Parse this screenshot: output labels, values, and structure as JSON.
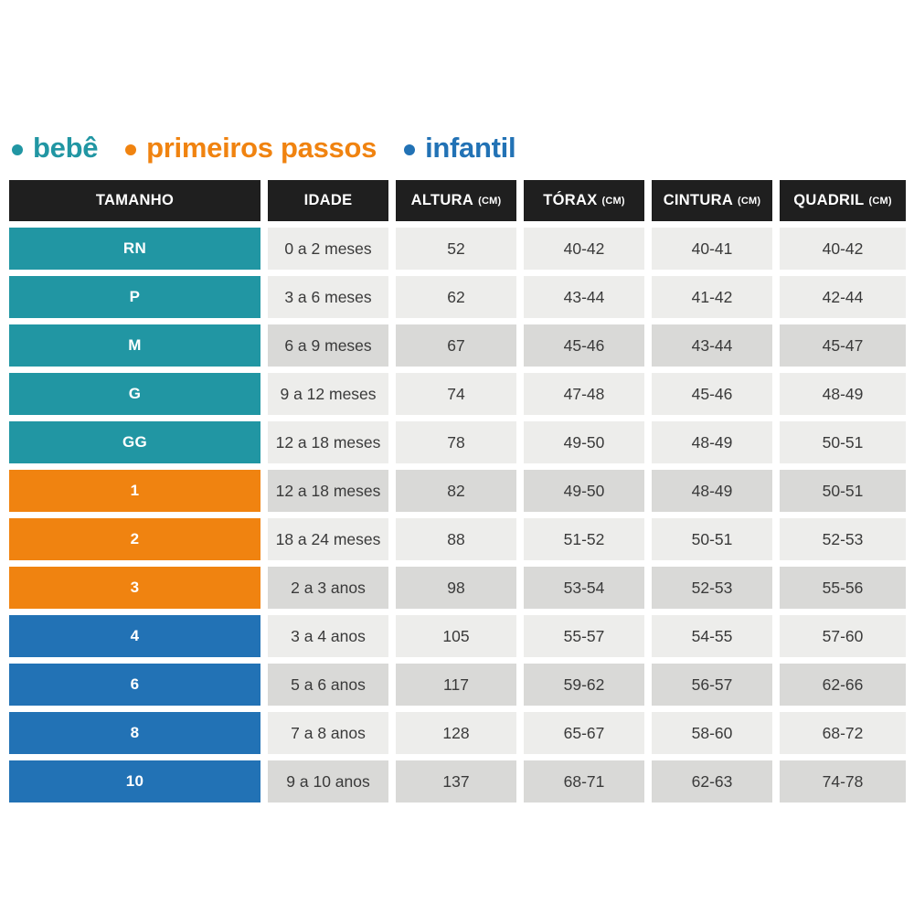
{
  "legend": {
    "items": [
      {
        "label": "bebê",
        "group": "bebe",
        "color": "#2196A3"
      },
      {
        "label": "primeiros passos",
        "group": "primeiros_passos",
        "color": "#F08310"
      },
      {
        "label": "infantil",
        "group": "infantil",
        "color": "#2272B5"
      }
    ]
  },
  "colors": {
    "bebe": "#2196A3",
    "primeiros_passos": "#F08310",
    "infantil": "#2272B5",
    "header_bg": "#1F1F1F",
    "row_light": "#EDEDEB",
    "row_dark": "#D9D9D7"
  },
  "chart_data": {
    "type": "table",
    "title": "",
    "columns": [
      {
        "label": "TAMANHO",
        "unit": ""
      },
      {
        "label": "IDADE",
        "unit": ""
      },
      {
        "label": "ALTURA",
        "unit": "(CM)"
      },
      {
        "label": "TÓRAX",
        "unit": "(CM)"
      },
      {
        "label": "CINTURA",
        "unit": "(CM)"
      },
      {
        "label": "QUADRIL",
        "unit": "(CM)"
      }
    ],
    "rows": [
      {
        "size": "RN",
        "group": "bebe",
        "shade": "light",
        "values": [
          "0 a 2 meses",
          "52",
          "40-42",
          "40-41",
          "40-42"
        ]
      },
      {
        "size": "P",
        "group": "bebe",
        "shade": "light",
        "values": [
          "3 a 6 meses",
          "62",
          "43-44",
          "41-42",
          "42-44"
        ]
      },
      {
        "size": "M",
        "group": "bebe",
        "shade": "dark",
        "values": [
          "6 a 9 meses",
          "67",
          "45-46",
          "43-44",
          "45-47"
        ]
      },
      {
        "size": "G",
        "group": "bebe",
        "shade": "light",
        "values": [
          "9 a 12 meses",
          "74",
          "47-48",
          "45-46",
          "48-49"
        ]
      },
      {
        "size": "GG",
        "group": "bebe",
        "shade": "light",
        "values": [
          "12 a 18 meses",
          "78",
          "49-50",
          "48-49",
          "50-51"
        ]
      },
      {
        "size": "1",
        "group": "primeiros_passos",
        "shade": "dark",
        "values": [
          "12 a 18 meses",
          "82",
          "49-50",
          "48-49",
          "50-51"
        ]
      },
      {
        "size": "2",
        "group": "primeiros_passos",
        "shade": "light",
        "values": [
          "18 a 24 meses",
          "88",
          "51-52",
          "50-51",
          "52-53"
        ]
      },
      {
        "size": "3",
        "group": "primeiros_passos",
        "shade": "dark",
        "values": [
          "2 a 3 anos",
          "98",
          "53-54",
          "52-53",
          "55-56"
        ]
      },
      {
        "size": "4",
        "group": "infantil",
        "shade": "light",
        "values": [
          "3 a 4 anos",
          "105",
          "55-57",
          "54-55",
          "57-60"
        ]
      },
      {
        "size": "6",
        "group": "infantil",
        "shade": "dark",
        "values": [
          "5 a 6 anos",
          "117",
          "59-62",
          "56-57",
          "62-66"
        ]
      },
      {
        "size": "8",
        "group": "infantil",
        "shade": "light",
        "values": [
          "7 a 8 anos",
          "128",
          "65-67",
          "58-60",
          "68-72"
        ]
      },
      {
        "size": "10",
        "group": "infantil",
        "shade": "dark",
        "values": [
          "9 a 10 anos",
          "137",
          "68-71",
          "62-63",
          "74-78"
        ]
      }
    ]
  }
}
